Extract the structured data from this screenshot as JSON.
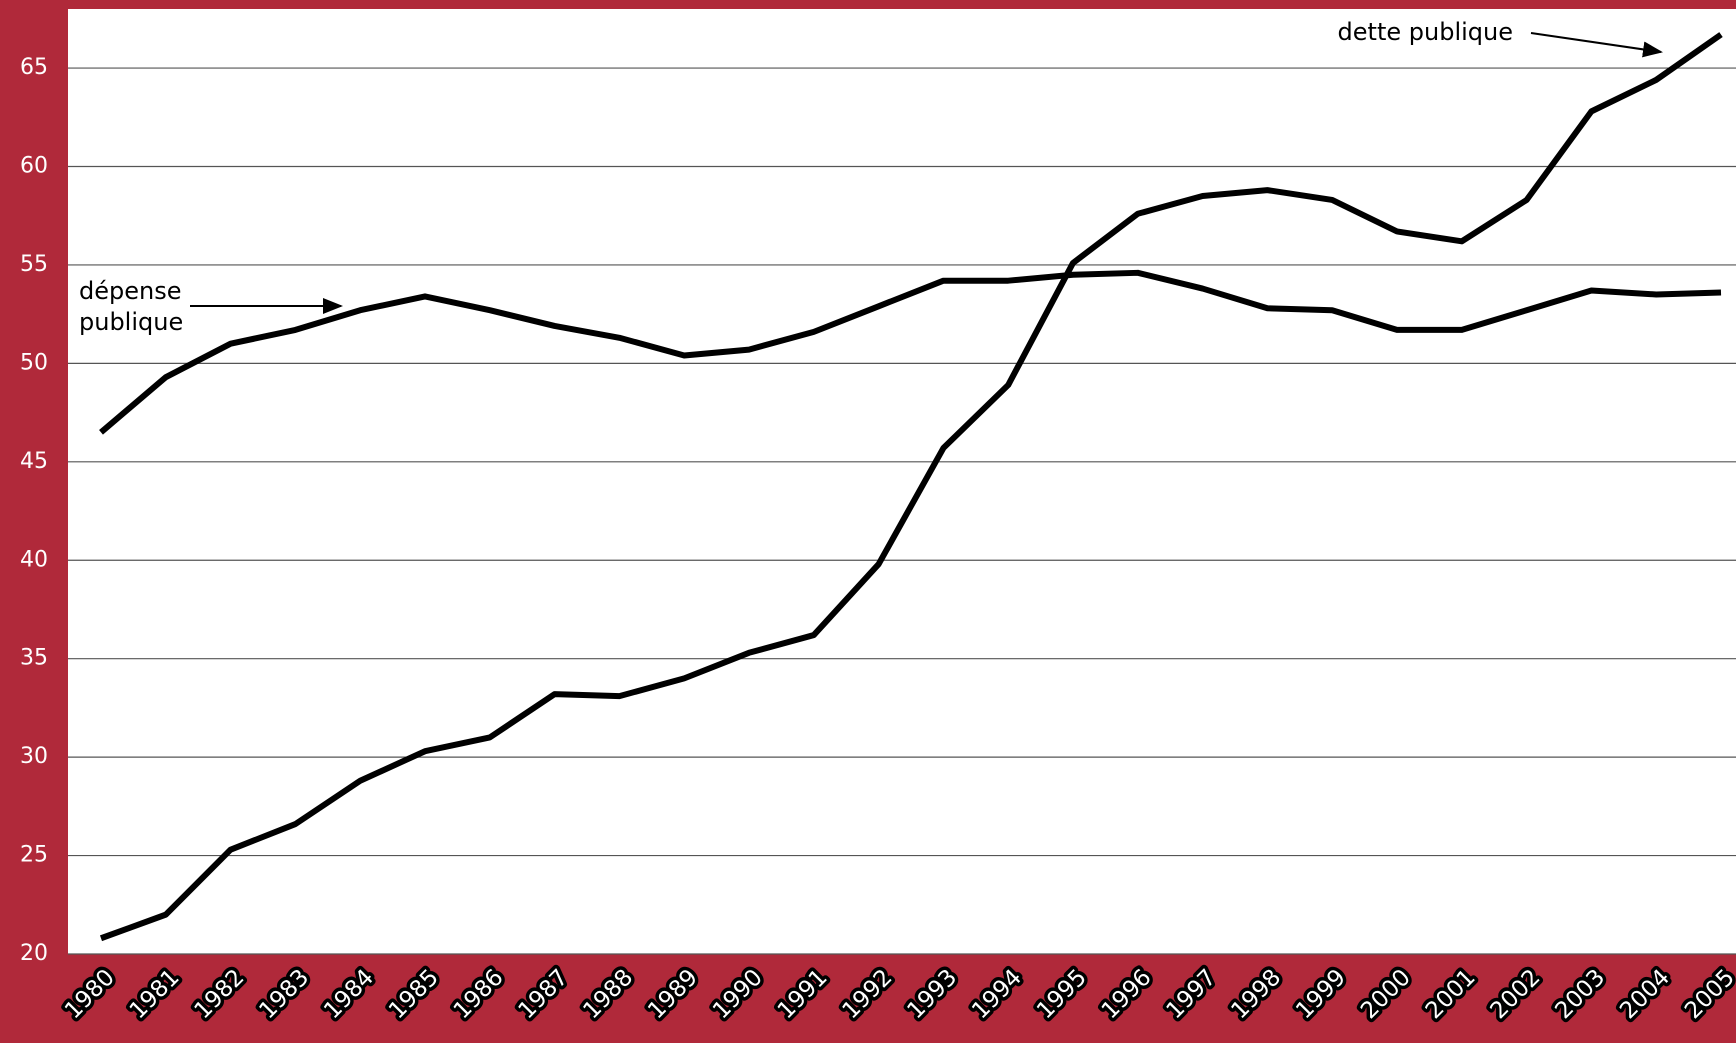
{
  "chart_data": {
    "type": "line",
    "categories": [
      "1980",
      "1981",
      "1982",
      "1983",
      "1984",
      "1985",
      "1986",
      "1987",
      "1988",
      "1989",
      "1990",
      "1991",
      "1992",
      "1993",
      "1994",
      "1995",
      "1996",
      "1997",
      "1998",
      "1999",
      "2000",
      "2001",
      "2002",
      "2003",
      "2004",
      "2005"
    ],
    "series": [
      {
        "name": "dette publique",
        "color": "#000000",
        "values": [
          20.8,
          22.0,
          25.3,
          26.6,
          28.8,
          30.3,
          31.0,
          33.2,
          33.1,
          34.0,
          35.3,
          36.2,
          39.8,
          45.7,
          48.9,
          55.1,
          57.6,
          58.5,
          58.8,
          58.3,
          56.7,
          56.2,
          58.3,
          62.8,
          64.4,
          66.7
        ]
      },
      {
        "name": "dépense publique",
        "color": "#000000",
        "values": [
          46.5,
          49.3,
          51.0,
          51.7,
          52.7,
          53.4,
          52.7,
          51.9,
          51.3,
          50.4,
          50.7,
          51.6,
          52.9,
          54.2,
          54.2,
          54.5,
          54.6,
          53.8,
          52.8,
          52.7,
          51.7,
          51.7,
          52.7,
          53.7,
          53.5,
          53.6
        ]
      }
    ],
    "annotations": {
      "dette": "dette publique",
      "depense": [
        "dépense",
        "publique"
      ]
    },
    "ylim": [
      20,
      68
    ],
    "yticks": [
      20,
      25,
      30,
      35,
      40,
      45,
      50,
      55,
      60,
      65
    ],
    "grid": true
  }
}
